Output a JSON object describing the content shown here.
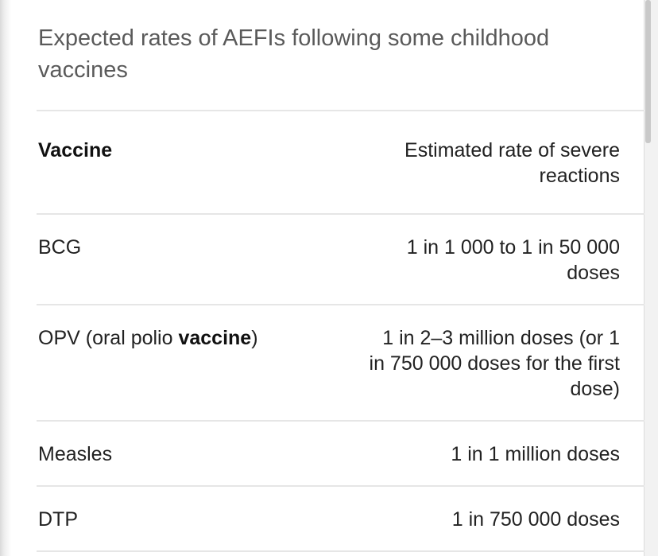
{
  "table": {
    "caption": "Expected rates of AEFIs following some childhood vaccines",
    "headers": {
      "vaccine": "Vaccine",
      "rate": "Estimated rate of severe reactions"
    },
    "rows": [
      {
        "vaccine": "BCG",
        "rate": "1 in 1 000 to 1 in 50 000 doses"
      },
      {
        "vaccine_prefix": "OPV (oral polio ",
        "vaccine_bold": "vaccine",
        "vaccine_suffix": ")",
        "rate": "1 in 2–3 million doses (or 1 in 750 000 doses for the first dose)"
      },
      {
        "vaccine": "Measles",
        "rate": "1 in 1 million doses"
      },
      {
        "vaccine": "DTP",
        "rate": "1 in 750 000 doses"
      }
    ]
  }
}
